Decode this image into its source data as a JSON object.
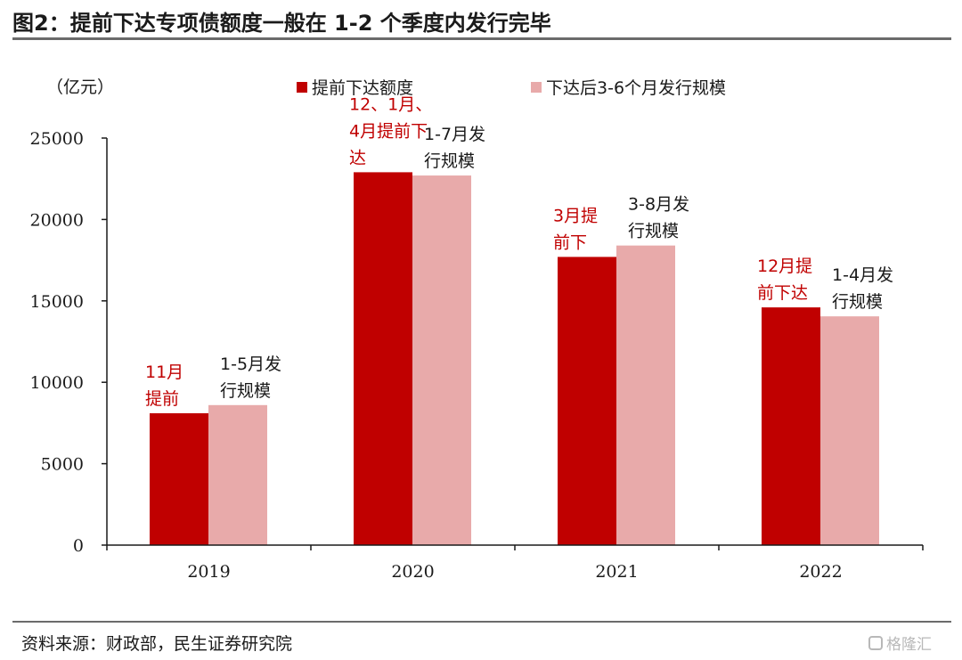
{
  "title": "图2：提前下达专项债额度一般在 1-2 个季度内发行完毕",
  "source": "资料来源：财政部，民生证券研究院",
  "watermark": "格隆汇",
  "colors": {
    "series1": "#c00000",
    "series2": "#e8aaaa",
    "red_text": "#c00000",
    "black_text": "#1a1a1a"
  },
  "chart_data": {
    "type": "bar",
    "ylabel": "（亿元）",
    "ylim": [
      0,
      25000
    ],
    "yticks": [
      0,
      5000,
      10000,
      15000,
      20000,
      25000
    ],
    "categories": [
      "2019",
      "2020",
      "2021",
      "2022"
    ],
    "series": [
      {
        "name": "提前下达额度",
        "values": [
          8100,
          22900,
          17700,
          14600
        ]
      },
      {
        "name": "下达后3-6个月发行规模",
        "values": [
          8600,
          22700,
          18400,
          14050
        ]
      }
    ],
    "legend": "top",
    "grid": false,
    "annotations": [
      {
        "category": "2019",
        "series": 0,
        "lines": [
          "11月",
          "提前"
        ]
      },
      {
        "category": "2019",
        "series": 1,
        "lines": [
          "1-5月发",
          "行规模"
        ]
      },
      {
        "category": "2020",
        "series": 0,
        "lines": [
          "12、1月、",
          "4月提前下",
          "达"
        ]
      },
      {
        "category": "2020",
        "series": 1,
        "lines": [
          "1-7月发",
          "行规模"
        ]
      },
      {
        "category": "2021",
        "series": 0,
        "lines": [
          "3月提",
          "前下"
        ]
      },
      {
        "category": "2021",
        "series": 1,
        "lines": [
          "3-8月发",
          "行规模"
        ]
      },
      {
        "category": "2022",
        "series": 0,
        "lines": [
          "12月提",
          "前下达"
        ]
      },
      {
        "category": "2022",
        "series": 1,
        "lines": [
          "1-4月发",
          "行规模"
        ]
      }
    ]
  }
}
